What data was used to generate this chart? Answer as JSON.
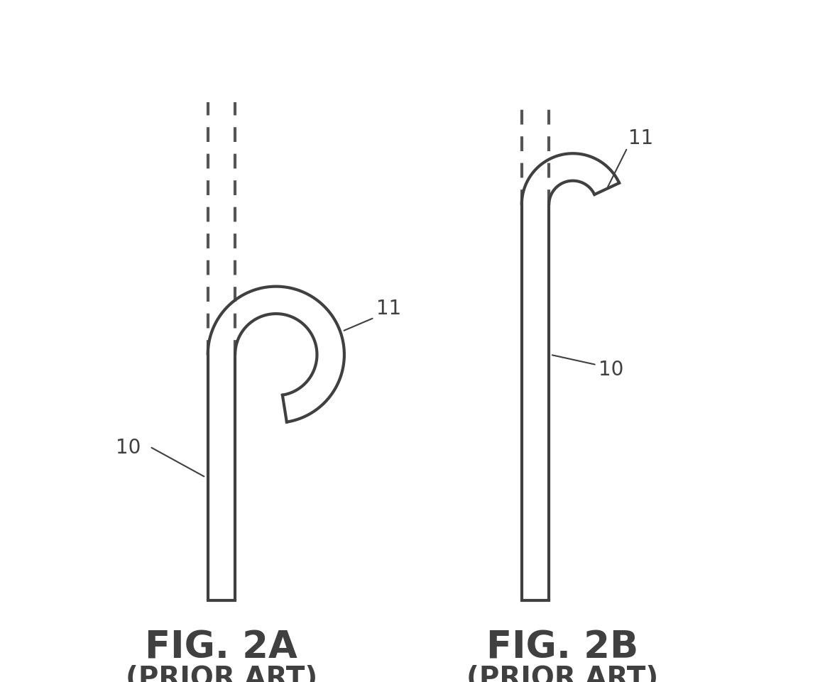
{
  "bg_color": "#ffffff",
  "line_color": "#404040",
  "line_width": 3.0,
  "dashed_color": "#555555",
  "fig2a_label": "FIG. 2A",
  "fig2b_label": "FIG. 2B",
  "prior_art": "(PRIOR ART)",
  "label_10": "10",
  "label_11": "11",
  "label_fontsize": 20,
  "caption_fontsize": 38,
  "prior_art_fontsize": 28
}
